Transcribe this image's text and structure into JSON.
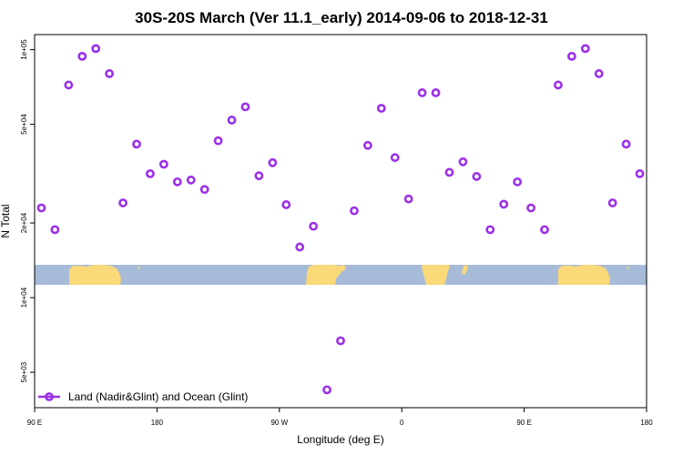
{
  "chart_data": {
    "type": "scatter",
    "title": "30S-20S March (Ver 11.1_early)   2014-09-06 to 2018-12-31",
    "xlabel": "Longitude (deg E)",
    "ylabel": "N Total",
    "y_scale": "log",
    "xlim": [
      90,
      540
    ],
    "ylim": [
      3600,
      115000
    ],
    "x_ticks": [
      {
        "value": 90,
        "label": "90 E"
      },
      {
        "value": 180,
        "label": "180"
      },
      {
        "value": 270,
        "label": "90 W"
      },
      {
        "value": 360,
        "label": "0"
      },
      {
        "value": 450,
        "label": "90 E"
      },
      {
        "value": 540,
        "label": "180"
      }
    ],
    "y_ticks": [
      {
        "value": 5000,
        "label": "5e+03"
      },
      {
        "value": 10000,
        "label": "1e+04"
      },
      {
        "value": 20000,
        "label": "2e+04"
      },
      {
        "value": 50000,
        "label": "5e+04"
      },
      {
        "value": 100000,
        "label": "1e+05"
      }
    ],
    "series": [
      {
        "name": "Land (Nadir&Glint) and Ocean (Glint)",
        "color": "#9b30e8",
        "marker": "open-circle",
        "x": [
          95,
          105,
          115,
          125,
          135,
          145,
          155,
          165,
          175,
          185,
          195,
          205,
          215,
          225,
          235,
          245,
          255,
          265,
          275,
          285,
          295,
          305,
          315,
          325,
          335,
          345,
          355,
          365,
          375,
          385,
          395,
          405,
          415,
          425,
          435,
          445,
          455,
          465,
          475,
          485,
          495,
          505,
          515,
          525,
          535
        ],
        "y": [
          23000,
          18800,
          72000,
          94000,
          101000,
          80000,
          24100,
          41600,
          31600,
          34500,
          29300,
          29800,
          27300,
          42900,
          52000,
          58800,
          31000,
          35000,
          23700,
          16000,
          19400,
          4250,
          6700,
          22400,
          41100,
          58000,
          36700,
          25000,
          67000,
          67000,
          32000,
          35300,
          30800,
          18800,
          23800,
          29300,
          23000,
          18800,
          72000,
          94000,
          101000,
          80000,
          24100,
          41600,
          31600
        ]
      }
    ],
    "legend": {
      "position": "bottom-left",
      "label": "Land (Nadir&Glint) and Ocean (Glint)"
    },
    "map_strip": {
      "description": "equirectangular land/ocean strip for 30S-20S",
      "ocean_color": "#a7bbd9",
      "land_color": "#f9d978"
    }
  }
}
